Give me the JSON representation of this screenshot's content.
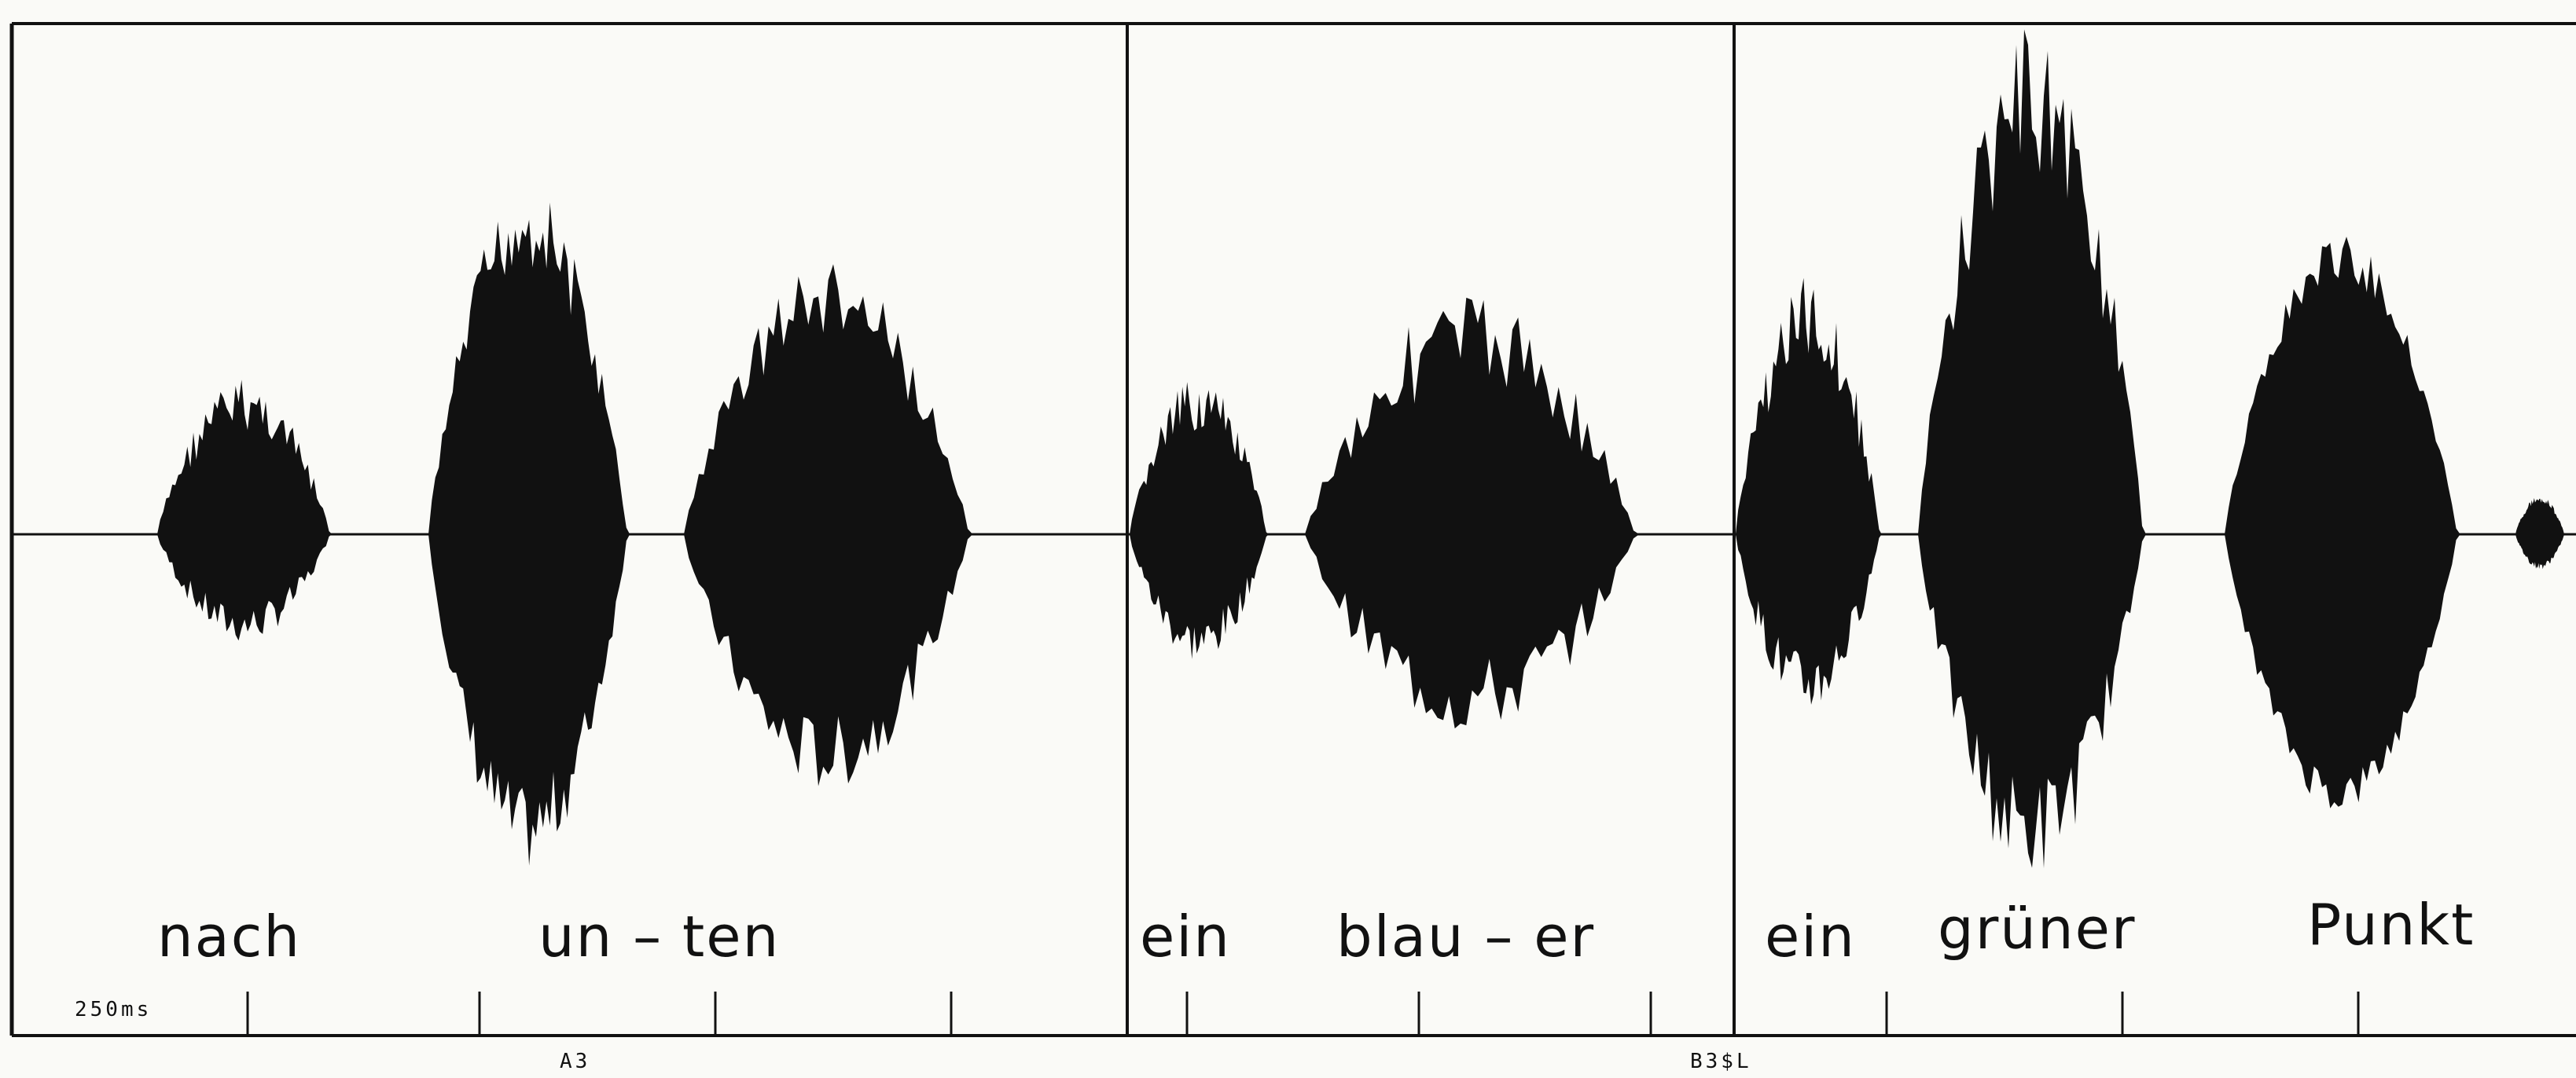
{
  "figure": {
    "words": [
      {
        "id": "nach",
        "text": "nach"
      },
      {
        "id": "un-ten",
        "text": "un – ten"
      },
      {
        "id": "ein-1",
        "text": "ein"
      },
      {
        "id": "blau-er",
        "text": "blau – er"
      },
      {
        "id": "ein-2",
        "text": "ein"
      },
      {
        "id": "gruener",
        "text": "grüner"
      },
      {
        "id": "punkt",
        "text": "Punkt"
      }
    ],
    "scale_label": "250ms",
    "segment_labels": [
      {
        "id": "a3",
        "text": "A3"
      },
      {
        "id": "b3sl",
        "text": "B3$L"
      }
    ]
  }
}
